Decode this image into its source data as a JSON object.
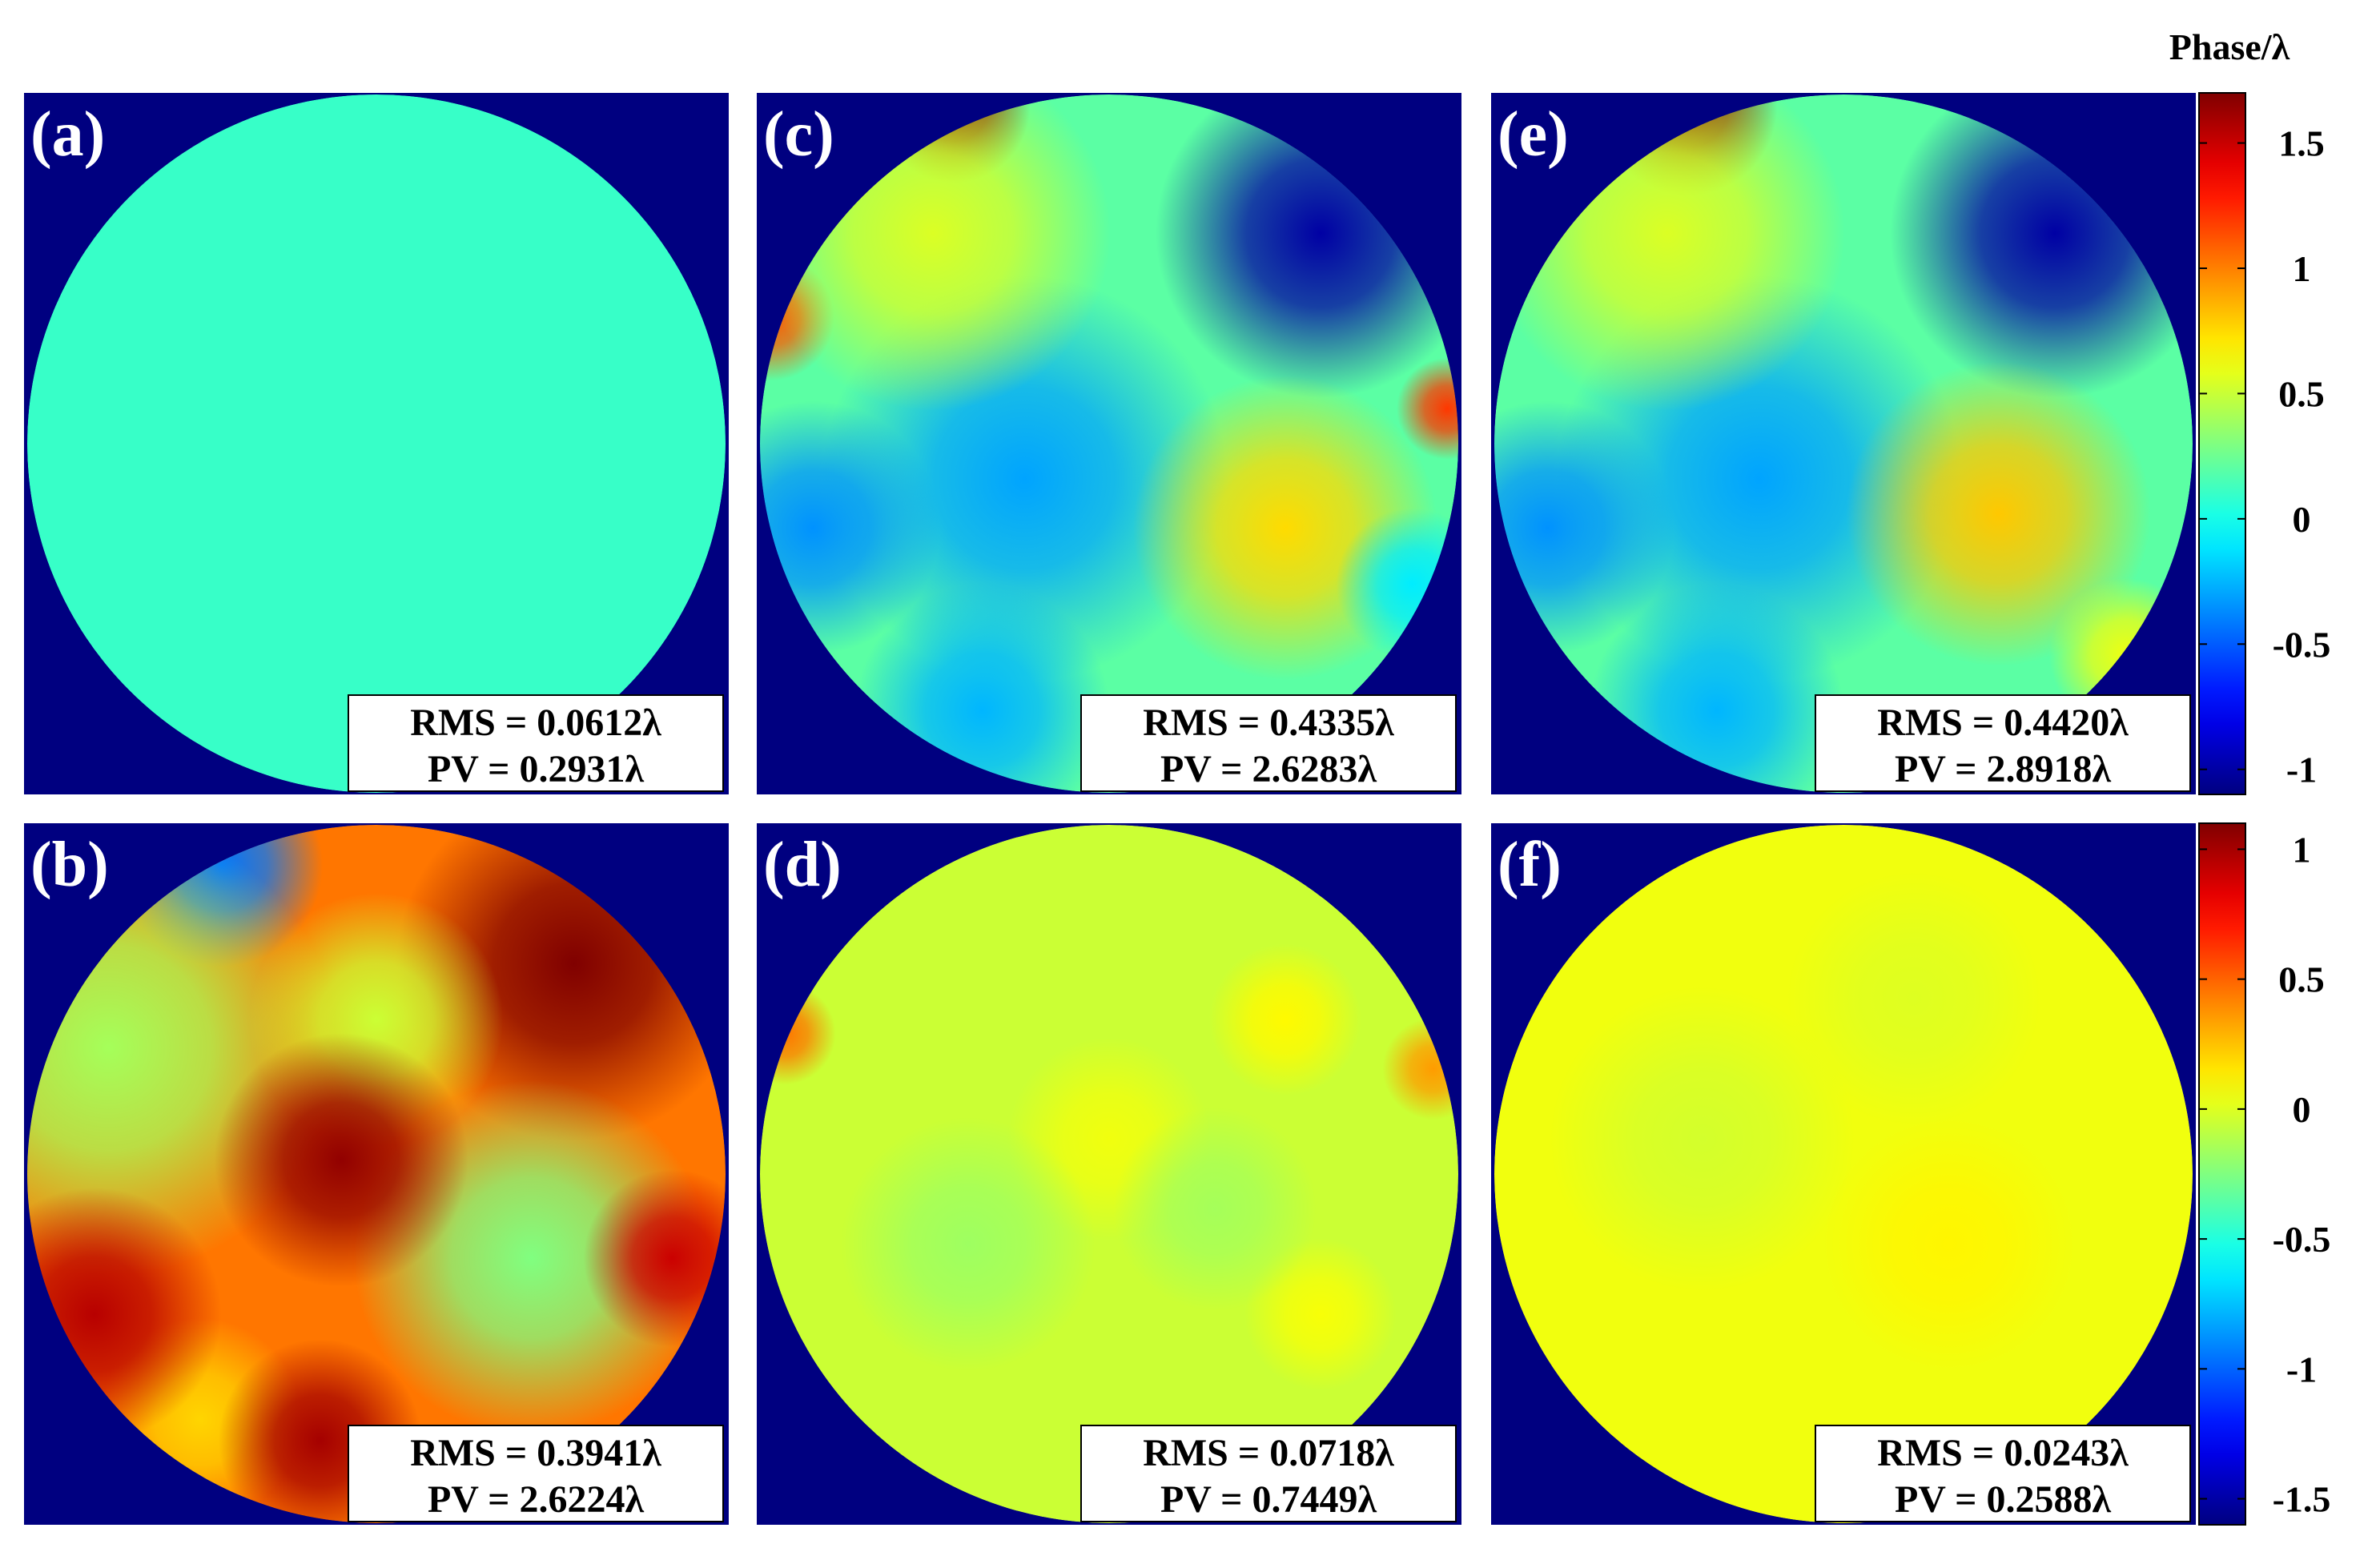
{
  "chart_data": {
    "type": "heatmap",
    "colorbar_title": "Phase/λ",
    "colormap": "jet",
    "colorbars": [
      {
        "name": "top",
        "range": [
          -1.1,
          1.7
        ],
        "tick_values": [
          -1,
          -0.5,
          0,
          0.5,
          1,
          1.5
        ],
        "tick_labels": [
          "-1",
          "-0.5",
          "0",
          "0.5",
          "1",
          "1.5"
        ]
      },
      {
        "name": "bottom",
        "range": [
          -1.6,
          1.1
        ],
        "tick_values": [
          -1.5,
          -1,
          -0.5,
          0,
          0.5,
          1
        ],
        "tick_labels": [
          "-1.5",
          "-1",
          "-0.5",
          "0",
          "0.5",
          "1"
        ]
      }
    ],
    "panels": [
      {
        "label": "(a)",
        "colorbar": "top",
        "rms_text": "RMS = 0.0612λ",
        "pv_text": "PV = 0.2931λ",
        "rms": 0.0612,
        "pv": 0.2931,
        "base_value": 0.1,
        "features": []
      },
      {
        "label": "(b)",
        "colorbar": "bottom",
        "rms_text": "RMS = 0.3941λ",
        "pv_text": "PV = 2.6224λ",
        "rms": 0.3941,
        "pv": 2.6224,
        "base_value": 0.45,
        "features": [
          {
            "u": 0.78,
            "v": 0.2,
            "value": 1.1,
            "sigma": 0.14
          },
          {
            "u": 0.28,
            "v": 0.06,
            "value": -1.4,
            "sigma": 0.08
          },
          {
            "u": 0.12,
            "v": 0.32,
            "value": -0.6,
            "sigma": 0.18
          },
          {
            "u": 0.5,
            "v": 0.28,
            "value": -0.5,
            "sigma": 0.1
          },
          {
            "u": 0.72,
            "v": 0.62,
            "value": -0.7,
            "sigma": 0.14
          },
          {
            "u": 0.25,
            "v": 0.85,
            "value": -0.25,
            "sigma": 0.08
          },
          {
            "u": 0.45,
            "v": 0.48,
            "value": 0.6,
            "sigma": 0.1
          },
          {
            "u": 0.42,
            "v": 0.88,
            "value": 0.55,
            "sigma": 0.08
          },
          {
            "u": 0.92,
            "v": 0.62,
            "value": 0.45,
            "sigma": 0.07
          },
          {
            "u": 0.1,
            "v": 0.7,
            "value": 0.5,
            "sigma": 0.1
          }
        ]
      },
      {
        "label": "(c)",
        "colorbar": "top",
        "rms_text": "RMS = 0.4335λ",
        "pv_text": "PV = 2.6283λ",
        "rms": 0.4335,
        "pv": 2.6283,
        "base_value": 0.2,
        "features": [
          {
            "u": 0.28,
            "v": 0.02,
            "value": 1.6,
            "sigma": 0.06
          },
          {
            "u": 0.02,
            "v": 0.32,
            "value": 0.9,
            "sigma": 0.05
          },
          {
            "u": 0.8,
            "v": 0.2,
            "value": -1.2,
            "sigma": 0.13
          },
          {
            "u": 0.38,
            "v": 0.55,
            "value": -0.5,
            "sigma": 0.16
          },
          {
            "u": 0.08,
            "v": 0.62,
            "value": -0.55,
            "sigma": 0.1
          },
          {
            "u": 0.32,
            "v": 0.88,
            "value": -0.45,
            "sigma": 0.1
          },
          {
            "u": 0.75,
            "v": 0.62,
            "value": 0.55,
            "sigma": 0.12
          },
          {
            "u": 0.25,
            "v": 0.2,
            "value": 0.35,
            "sigma": 0.14
          },
          {
            "u": 0.98,
            "v": 0.45,
            "value": 1.0,
            "sigma": 0.04
          },
          {
            "u": 0.93,
            "v": 0.7,
            "value": -0.3,
            "sigma": 0.06
          }
        ]
      },
      {
        "label": "(d)",
        "colorbar": "bottom",
        "rms_text": "RMS = 0.0718λ",
        "pv_text": "PV = 0.7449λ",
        "rms": 0.0718,
        "pv": 0.7449,
        "base_value": -0.05,
        "features": [
          {
            "u": 0.04,
            "v": 0.3,
            "value": 0.5,
            "sigma": 0.04
          },
          {
            "u": 0.96,
            "v": 0.35,
            "value": 0.4,
            "sigma": 0.04
          },
          {
            "u": 0.75,
            "v": 0.28,
            "value": 0.15,
            "sigma": 0.06
          },
          {
            "u": 0.5,
            "v": 0.45,
            "value": 0.1,
            "sigma": 0.08
          },
          {
            "u": 0.8,
            "v": 0.7,
            "value": 0.12,
            "sigma": 0.06
          },
          {
            "u": 0.3,
            "v": 0.6,
            "value": -0.12,
            "sigma": 0.1
          },
          {
            "u": 0.65,
            "v": 0.55,
            "value": -0.1,
            "sigma": 0.08
          }
        ]
      },
      {
        "label": "(e)",
        "colorbar": "top",
        "rms_text": "RMS = 0.4420λ",
        "pv_text": "PV = 2.8918λ",
        "rms": 0.442,
        "pv": 2.8918,
        "base_value": 0.2,
        "features": [
          {
            "u": 0.28,
            "v": 0.02,
            "value": 1.7,
            "sigma": 0.07
          },
          {
            "u": 0.8,
            "v": 0.2,
            "value": -1.2,
            "sigma": 0.13
          },
          {
            "u": 0.38,
            "v": 0.55,
            "value": -0.5,
            "sigma": 0.16
          },
          {
            "u": 0.08,
            "v": 0.62,
            "value": -0.55,
            "sigma": 0.1
          },
          {
            "u": 0.32,
            "v": 0.88,
            "value": -0.45,
            "sigma": 0.1
          },
          {
            "u": 0.72,
            "v": 0.6,
            "value": 0.6,
            "sigma": 0.12
          },
          {
            "u": 0.25,
            "v": 0.2,
            "value": 0.35,
            "sigma": 0.14
          },
          {
            "u": 0.9,
            "v": 0.8,
            "value": 0.4,
            "sigma": 0.06
          }
        ]
      },
      {
        "label": "(f)",
        "colorbar": "bottom",
        "rms_text": "RMS = 0.0243λ",
        "pv_text": "PV = 0.2588λ",
        "rms": 0.0243,
        "pv": 0.2588,
        "base_value": 0.05,
        "features": [
          {
            "u": 0.3,
            "v": 0.45,
            "value": -0.08,
            "sigma": 0.12
          },
          {
            "u": 0.65,
            "v": 0.6,
            "value": 0.06,
            "sigma": 0.1
          },
          {
            "u": 0.6,
            "v": 0.25,
            "value": -0.05,
            "sigma": 0.1
          }
        ]
      }
    ]
  }
}
